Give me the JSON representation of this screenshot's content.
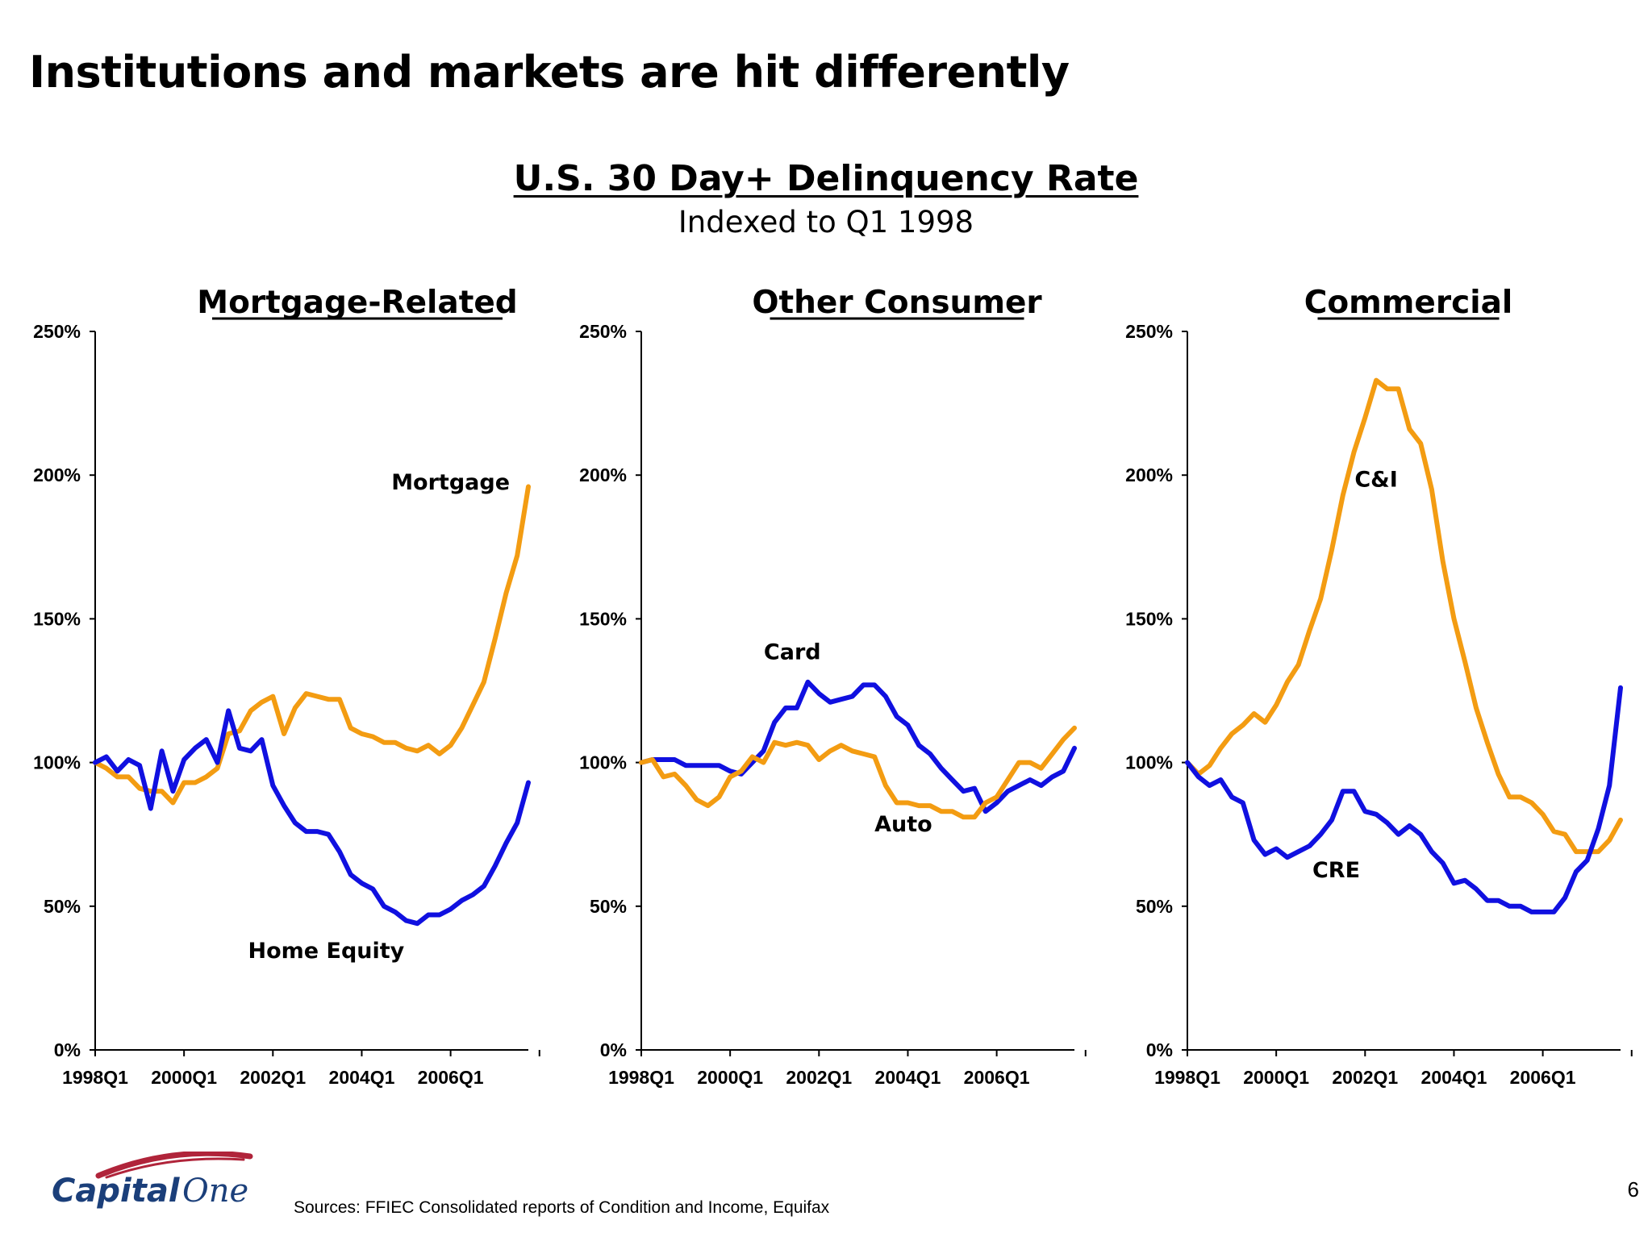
{
  "slide": {
    "title": "Institutions and markets are hit differently",
    "page_number": "6",
    "sources": "Sources: FFIEC Consolidated reports of Condition and Income, Equifax",
    "logo_text": "Capital One"
  },
  "heading": {
    "title": "U.S. 30 Day+ Delinquency Rate",
    "subtitle": "Indexed to Q1 1998"
  },
  "colors": {
    "orange": "#F39C12",
    "blue": "#1010E0",
    "logo_red": "#B0243A",
    "logo_navy": "#1B3F7A"
  },
  "chart_data": [
    {
      "type": "line",
      "title": "Mortgage-Related",
      "xlim": [
        1998.0,
        2007.75
      ],
      "ylim": [
        0,
        250
      ],
      "yticks": [
        "0%",
        "50%",
        "100%",
        "150%",
        "200%",
        "250%"
      ],
      "xticks": [
        "1998Q1",
        "2000Q1",
        "2002Q1",
        "2004Q1",
        "2006Q1"
      ],
      "x_start": 1998.0,
      "x_step": 0.25,
      "series": [
        {
          "name": "Mortgage",
          "color": "#F39C12",
          "label_at": [
            2006.0,
            195
          ],
          "values": [
            100,
            98,
            95,
            95,
            91,
            90,
            90,
            86,
            93,
            93,
            95,
            98,
            110,
            111,
            118,
            121,
            123,
            110,
            119,
            124,
            123,
            122,
            122,
            112,
            110,
            109,
            107,
            107,
            105,
            104,
            106,
            103,
            106,
            112,
            120,
            128,
            143,
            159,
            172,
            196
          ]
        },
        {
          "name": "Home Equity",
          "color": "#1010E0",
          "label_at": [
            2003.2,
            32
          ],
          "values": [
            100,
            102,
            97,
            101,
            99,
            84,
            104,
            90,
            101,
            105,
            108,
            100,
            118,
            105,
            104,
            108,
            92,
            85,
            79,
            76,
            76,
            75,
            69,
            61,
            58,
            56,
            50,
            48,
            45,
            44,
            47,
            47,
            49,
            52,
            54,
            57,
            64,
            72,
            79,
            93
          ]
        }
      ]
    },
    {
      "type": "line",
      "title": "Other Consumer",
      "xlim": [
        1998.0,
        2007.75
      ],
      "ylim": [
        0,
        250
      ],
      "yticks": [
        "0%",
        "50%",
        "100%",
        "150%",
        "200%",
        "250%"
      ],
      "xticks": [
        "1998Q1",
        "2000Q1",
        "2002Q1",
        "2004Q1",
        "2006Q1"
      ],
      "x_start": 1998.0,
      "x_step": 0.25,
      "series": [
        {
          "name": "Card",
          "color": "#1010E0",
          "label_at": [
            2001.4,
            136
          ],
          "values": [
            100,
            101,
            101,
            101,
            99,
            99,
            99,
            99,
            97,
            96,
            100,
            104,
            114,
            119,
            119,
            128,
            124,
            121,
            122,
            123,
            127,
            127,
            123,
            116,
            113,
            106,
            103,
            98,
            94,
            90,
            91,
            83,
            86,
            90,
            92,
            94,
            92,
            95,
            97,
            105
          ]
        },
        {
          "name": "Auto",
          "color": "#F39C12",
          "label_at": [
            2003.9,
            76
          ],
          "values": [
            100,
            101,
            95,
            96,
            92,
            87,
            85,
            88,
            95,
            97,
            102,
            100,
            107,
            106,
            107,
            106,
            101,
            104,
            106,
            104,
            103,
            102,
            92,
            86,
            86,
            85,
            85,
            83,
            83,
            81,
            81,
            86,
            88,
            94,
            100,
            100,
            98,
            103,
            108,
            112
          ]
        }
      ]
    },
    {
      "type": "line",
      "title": "Commercial",
      "xlim": [
        1998.0,
        2007.75
      ],
      "ylim": [
        0,
        250
      ],
      "yticks": [
        "0%",
        "50%",
        "100%",
        "150%",
        "200%",
        "250%"
      ],
      "xticks": [
        "1998Q1",
        "2000Q1",
        "2002Q1",
        "2004Q1",
        "2006Q1"
      ],
      "x_start": 1998.0,
      "x_step": 0.25,
      "series": [
        {
          "name": "C&I",
          "color": "#F39C12",
          "label_at": [
            2002.25,
            196
          ],
          "values": [
            100,
            96,
            99,
            105,
            110,
            113,
            117,
            114,
            120,
            128,
            134,
            146,
            157,
            174,
            193,
            208,
            220,
            233,
            230,
            230,
            216,
            211,
            195,
            170,
            150,
            135,
            119,
            107,
            96,
            88,
            88,
            86,
            82,
            76,
            75,
            69,
            69,
            69,
            73,
            80
          ]
        },
        {
          "name": "CRE",
          "color": "#1010E0",
          "label_at": [
            2001.35,
            60
          ],
          "values": [
            100,
            95,
            92,
            94,
            88,
            86,
            73,
            68,
            70,
            67,
            69,
            71,
            75,
            80,
            90,
            90,
            83,
            82,
            79,
            75,
            78,
            75,
            69,
            65,
            58,
            59,
            56,
            52,
            52,
            50,
            50,
            48,
            48,
            48,
            53,
            62,
            66,
            77,
            92,
            126
          ]
        }
      ]
    }
  ]
}
